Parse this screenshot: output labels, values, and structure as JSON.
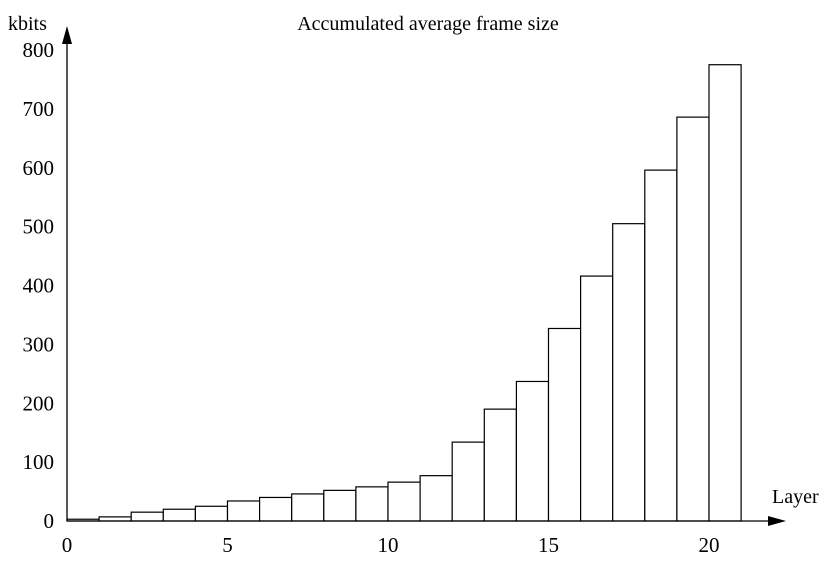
{
  "chart_data": {
    "type": "bar",
    "title": "Accumulated average frame size",
    "xlabel": "Layer",
    "ylabel": "kbits",
    "x": [
      0,
      1,
      2,
      3,
      4,
      5,
      6,
      7,
      8,
      9,
      10,
      11,
      12,
      13,
      14,
      15,
      16,
      17,
      18,
      19,
      20
    ],
    "values": [
      3,
      7,
      15,
      20,
      25,
      34,
      40,
      46,
      52,
      58,
      66,
      77,
      134,
      190,
      237,
      327,
      416,
      505,
      596,
      686,
      775
    ],
    "xlim": [
      0,
      21
    ],
    "ylim": [
      0,
      800
    ],
    "xticks": [
      0,
      5,
      10,
      15,
      20
    ],
    "yticks": [
      0,
      100,
      200,
      300,
      400,
      500,
      600,
      700,
      800
    ],
    "grid": false,
    "colors": {
      "bar_fill": "#ffffff",
      "bar_stroke": "#000000",
      "axis": "#000000"
    }
  }
}
